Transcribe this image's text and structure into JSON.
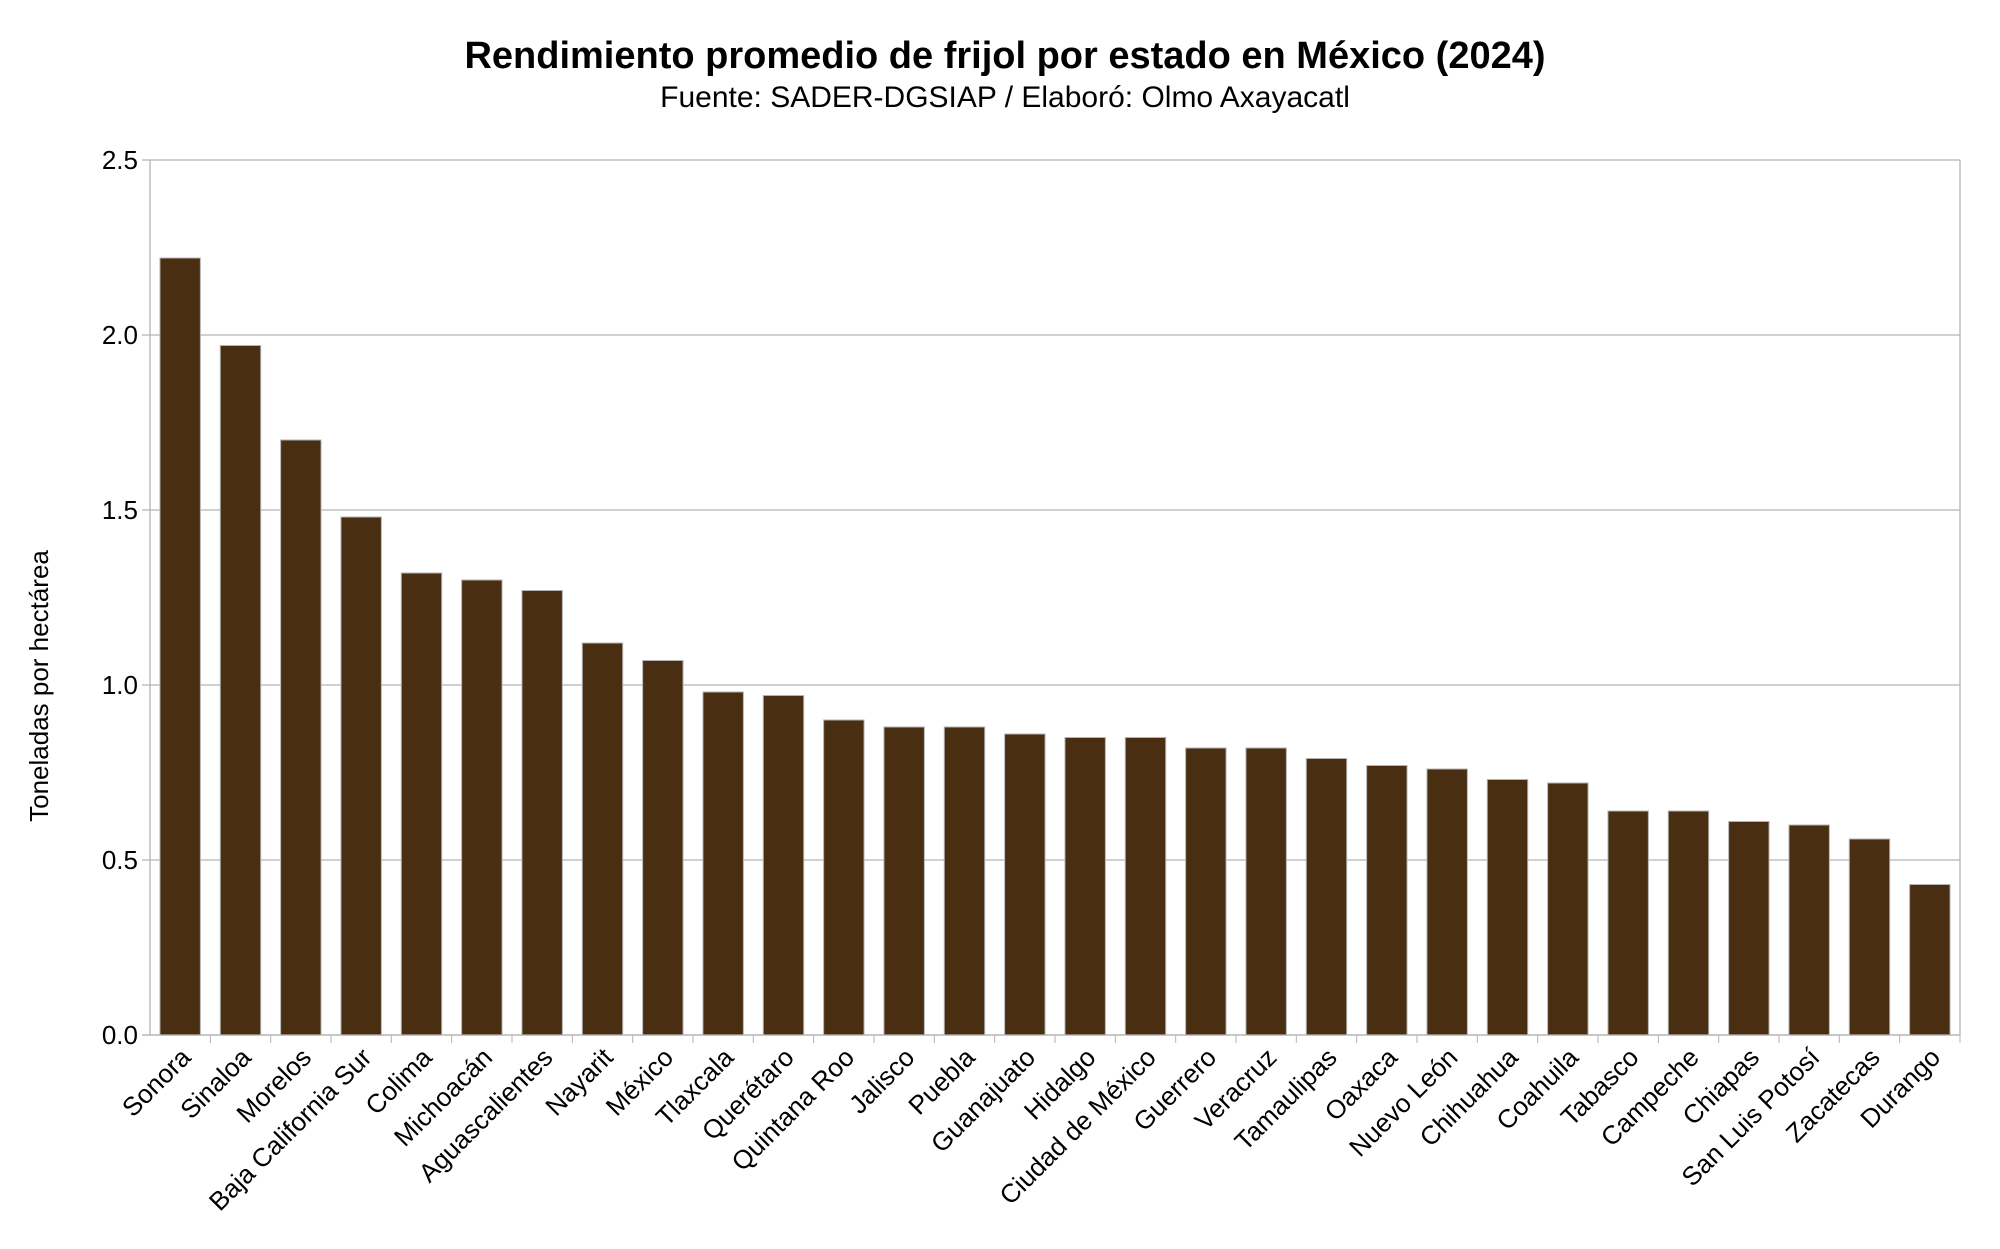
{
  "chart_data": {
    "type": "bar",
    "title": "Rendimiento promedio de frijol por estado en México (2024)",
    "subtitle": "Fuente: SADER-DGSIAP / Elaboró: Olmo Axayacatl",
    "xlabel": "",
    "ylabel": "Toneladas por hectárea",
    "ylim": [
      0,
      2.5
    ],
    "yticks": [
      "0.0",
      "0.5",
      "1.0",
      "1.5",
      "2.0",
      "2.5"
    ],
    "grid": true,
    "bar_color": "#4a2e12",
    "categories": [
      "Sonora",
      "Sinaloa",
      "Morelos",
      "Baja California Sur",
      "Colima",
      "Michoacán",
      "Aguascalientes",
      "Nayarit",
      "México",
      "Tlaxcala",
      "Querétaro",
      "Quintana Roo",
      "Jalisco",
      "Puebla",
      "Guanajuato",
      "Hidalgo",
      "Ciudad de México",
      "Guerrero",
      "Veracruz",
      "Tamaulipas",
      "Oaxaca",
      "Nuevo León",
      "Chihuahua",
      "Coahuila",
      "Tabasco",
      "Campeche",
      "Chiapas",
      "San Luis Potosí",
      "Zacatecas",
      "Durango"
    ],
    "values": [
      2.22,
      1.97,
      1.7,
      1.48,
      1.32,
      1.3,
      1.27,
      1.12,
      1.07,
      0.98,
      0.97,
      0.9,
      0.88,
      0.88,
      0.86,
      0.85,
      0.85,
      0.82,
      0.82,
      0.79,
      0.77,
      0.76,
      0.73,
      0.72,
      0.64,
      0.64,
      0.61,
      0.6,
      0.56,
      0.43
    ]
  }
}
